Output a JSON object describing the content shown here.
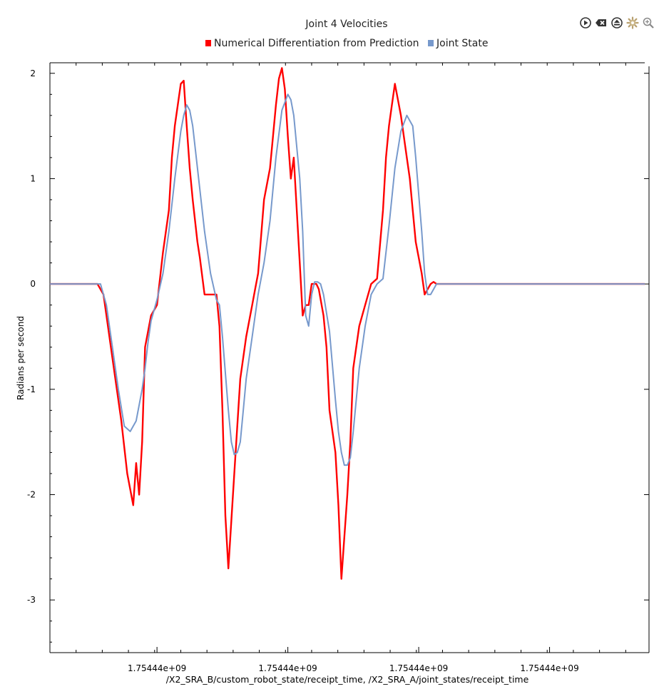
{
  "toolbar": {
    "icons": [
      "play-icon",
      "clear-icon",
      "eject-icon",
      "settings-icon",
      "zoom-icon"
    ]
  },
  "chart_data": {
    "type": "line",
    "title": "Joint 4 Velocities",
    "xlabel": "/X2_SRA_B/custom_robot_state/receipt_time, /X2_SRA_A/joint_states/receipt_time",
    "ylabel": "Radians per second",
    "xlim": [
      0.0,
      100.0
    ],
    "ylim": [
      -3.5,
      2.1
    ],
    "x_ticks": [
      {
        "value": 18,
        "label": "1.75444e+09"
      },
      {
        "value": 40,
        "label": "1.75444e+09"
      },
      {
        "value": 62,
        "label": "1.75444e+09"
      },
      {
        "value": 84,
        "label": "1.75444e+09"
      }
    ],
    "y_ticks": [
      {
        "value": 2,
        "label": "2"
      },
      {
        "value": 1,
        "label": "1"
      },
      {
        "value": 0,
        "label": "0"
      },
      {
        "value": -1,
        "label": "-1"
      },
      {
        "value": -2,
        "label": "-2"
      },
      {
        "value": -3,
        "label": "-3"
      }
    ],
    "legend_position": "top-center",
    "grid": false,
    "series": [
      {
        "name": "Numerical Differentiation from Prediction",
        "color": "#ff0000",
        "x": [
          0,
          8,
          9,
          10,
          11,
          12,
          13,
          14,
          14.5,
          15,
          15.5,
          16,
          17,
          18,
          19,
          20,
          20.5,
          21,
          21.5,
          22,
          22.5,
          23,
          23.5,
          24,
          24.4,
          24.8,
          25.2,
          26,
          27,
          28,
          28.5,
          29,
          29.5,
          30,
          31,
          32,
          33,
          34,
          34.5,
          35,
          36,
          37,
          38,
          38.5,
          39,
          39.5,
          40,
          40.5,
          41,
          41.5,
          42,
          42.5,
          43,
          43.5,
          44,
          44.4,
          44.8,
          45.2,
          46,
          46.5,
          47,
          48,
          48.5,
          49,
          50,
          50.5,
          51,
          52,
          53,
          54,
          55,
          56,
          56.5,
          57,
          57.5,
          58,
          59,
          60,
          60.5,
          61,
          61.5,
          62,
          62.5,
          63,
          63.5,
          64,
          64.5,
          65,
          65.5,
          66,
          67,
          68,
          69,
          70,
          71,
          72,
          100
        ],
        "y": [
          0,
          0,
          -0.1,
          -0.5,
          -0.9,
          -1.3,
          -1.8,
          -2.1,
          -1.7,
          -2.0,
          -1.5,
          -0.6,
          -0.3,
          -0.2,
          0.3,
          0.7,
          1.2,
          1.5,
          1.7,
          1.9,
          1.93,
          1.5,
          1.1,
          0.8,
          0.6,
          0.4,
          0.25,
          -0.1,
          -0.1,
          -0.1,
          -0.4,
          -1.2,
          -2.2,
          -2.7,
          -1.8,
          -0.9,
          -0.5,
          -0.2,
          -0.05,
          0.1,
          0.8,
          1.1,
          1.7,
          1.95,
          2.05,
          1.85,
          1.4,
          1.0,
          1.2,
          0.7,
          0.2,
          -0.3,
          -0.2,
          -0.2,
          0,
          0,
          0,
          -0.05,
          -0.3,
          -0.6,
          -1.2,
          -1.6,
          -2.1,
          -2.8,
          -2.0,
          -1.5,
          -0.8,
          -0.4,
          -0.2,
          0,
          0.05,
          0.7,
          1.2,
          1.5,
          1.7,
          1.9,
          1.6,
          1.2,
          1.0,
          0.7,
          0.4,
          0.25,
          0.1,
          -0.1,
          -0.05,
          0,
          0.02,
          0,
          0,
          0,
          0,
          0,
          0,
          0,
          0,
          0,
          0
        ]
      },
      {
        "name": "Joint State",
        "color": "#7799cc",
        "x": [
          0,
          8.5,
          9.5,
          10.5,
          11.5,
          12.5,
          13.5,
          14.5,
          15.5,
          16,
          16.5,
          17,
          18,
          19,
          20,
          21,
          22,
          22.5,
          23,
          23.5,
          24,
          25,
          26,
          27,
          28,
          28.5,
          29,
          30,
          30.5,
          31,
          31.5,
          32,
          32.5,
          33,
          34,
          35,
          36,
          37,
          38,
          39,
          40,
          40.5,
          41,
          42,
          42.5,
          43,
          43.5,
          44,
          44.5,
          45,
          45.5,
          46,
          47,
          48,
          48.5,
          49,
          49.5,
          50,
          50.5,
          51,
          52,
          53,
          54,
          55,
          56,
          57,
          58,
          59,
          60,
          61,
          61.5,
          62,
          62.5,
          63,
          63.5,
          64,
          65,
          66,
          67,
          68,
          69,
          70,
          71,
          72,
          100
        ],
        "y": [
          0,
          0,
          -0.2,
          -0.6,
          -1.0,
          -1.35,
          -1.4,
          -1.3,
          -1.0,
          -0.8,
          -0.55,
          -0.35,
          -0.15,
          0.1,
          0.5,
          1.0,
          1.45,
          1.6,
          1.7,
          1.65,
          1.5,
          1.0,
          0.5,
          0.1,
          -0.15,
          -0.2,
          -0.5,
          -1.2,
          -1.5,
          -1.62,
          -1.6,
          -1.5,
          -1.2,
          -0.9,
          -0.5,
          -0.1,
          0.2,
          0.6,
          1.2,
          1.65,
          1.8,
          1.75,
          1.6,
          1.0,
          0.5,
          -0.3,
          -0.4,
          -0.1,
          0.02,
          0.02,
          0,
          -0.1,
          -0.45,
          -1.1,
          -1.4,
          -1.6,
          -1.72,
          -1.72,
          -1.65,
          -1.4,
          -0.8,
          -0.4,
          -0.1,
          0,
          0.05,
          0.55,
          1.1,
          1.45,
          1.6,
          1.5,
          1.2,
          0.85,
          0.5,
          0.1,
          -0.1,
          -0.1,
          0,
          0,
          0,
          0,
          0,
          0,
          0,
          0,
          0
        ]
      }
    ]
  }
}
